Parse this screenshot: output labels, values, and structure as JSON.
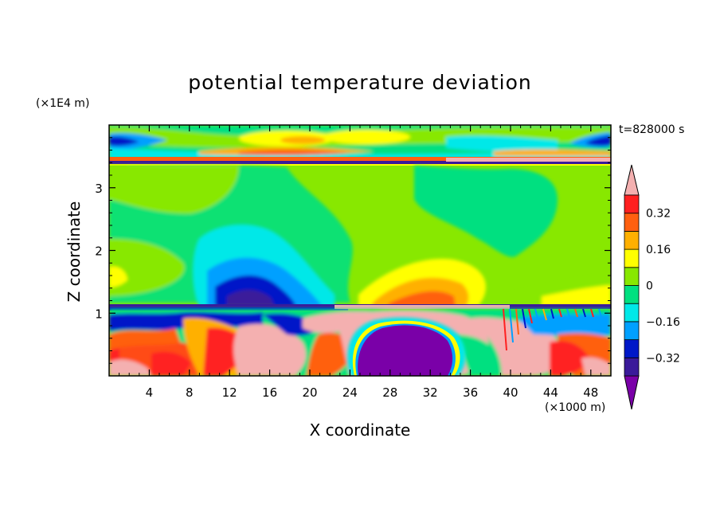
{
  "chart_data": {
    "type": "heatmap",
    "title": "potential temperature deviation",
    "time_label": "t=828000 s",
    "xlabel": "X coordinate",
    "ylabel": "Z coordinate",
    "x_unit_label": "(×1000 m)",
    "y_unit_label": "(×1E4 m)",
    "xlim": [
      0,
      50
    ],
    "ylim": [
      0,
      4
    ],
    "x_ticks": [
      4,
      8,
      12,
      16,
      20,
      24,
      28,
      32,
      36,
      40,
      44,
      48
    ],
    "y_ticks": [
      1,
      2,
      3
    ],
    "colorbar": {
      "levels": [
        -0.4,
        -0.32,
        -0.24,
        -0.16,
        -0.08,
        0,
        0.08,
        0.16,
        0.24,
        0.32,
        0.4
      ],
      "labels": [
        "0.32",
        "0.16",
        "0",
        "−0.16",
        "−0.32"
      ],
      "label_values": [
        0.32,
        0.16,
        0,
        -0.16,
        -0.32
      ],
      "colors": [
        "#7a00a8",
        "#3a1a9a",
        "#0018c8",
        "#00a0ff",
        "#00e8e8",
        "#00e080",
        "#88e800",
        "#ffff00",
        "#ffb000",
        "#ff6010",
        "#ff2020",
        "#f4b0b0"
      ],
      "extend": "both"
    },
    "fields": {
      "background_level": 0.02,
      "features": [
        {
          "description_kind": "warm_region",
          "x": [
            38,
            50
          ],
          "z": [
            0,
            1.1
          ],
          "value": 0.45
        },
        {
          "description_kind": "cold_pool",
          "x": [
            23,
            38
          ],
          "z": [
            0,
            1.0
          ],
          "value": -0.45
        }
      ]
    }
  }
}
